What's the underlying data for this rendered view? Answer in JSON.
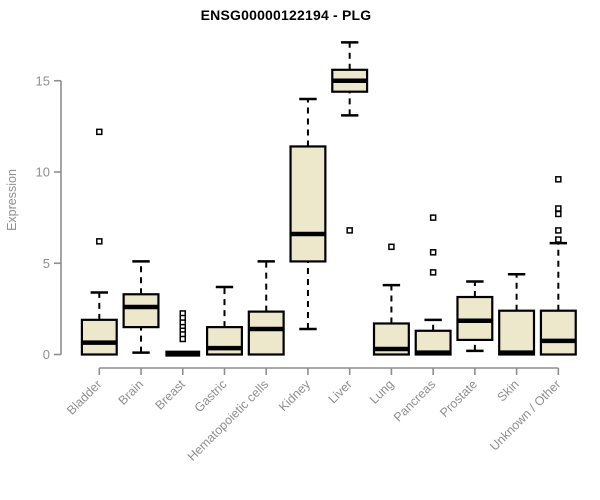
{
  "title": "ENSG00000122194 - PLG",
  "colors": {
    "background": "#ffffff",
    "box_fill": "#EDE8CC",
    "box_stroke": "#000000",
    "median": "#000000",
    "axis": "#8e8e8e",
    "tick_label": "#8f8f8f",
    "title": "#000000",
    "outlier_fill": "#ffffff"
  },
  "chart_data": {
    "type": "boxplot",
    "title": "ENSG00000122194 - PLG",
    "xlabel": "",
    "ylabel": "Expression",
    "yticks": [
      0,
      5,
      10,
      15
    ],
    "ylim": [
      0,
      17.5
    ],
    "grid": "off",
    "legend": "none",
    "categories": [
      "Bladder",
      "Brain",
      "Breast",
      "Gastric",
      "Hematopoietic cells",
      "Kidney",
      "Liver",
      "Lung",
      "Pancreas",
      "Prostate",
      "Skin",
      "Unknown / Other"
    ],
    "series": [
      {
        "name": "Bladder",
        "whisker_low": 0,
        "q1": 0,
        "median": 0.65,
        "q3": 1.9,
        "whisker_high": 3.4,
        "outliers": [
          12.2,
          6.2
        ]
      },
      {
        "name": "Brain",
        "whisker_low": 0.1,
        "q1": 1.5,
        "median": 2.6,
        "q3": 3.3,
        "whisker_high": 5.1,
        "outliers": []
      },
      {
        "name": "Breast",
        "whisker_low": 0,
        "q1": 0,
        "median": 0.05,
        "q3": 0.05,
        "whisker_high": 0.05,
        "outliers": [
          2.25,
          2.0,
          1.75,
          1.5,
          1.3,
          1.1,
          0.85
        ]
      },
      {
        "name": "Gastric",
        "whisker_low": 0,
        "q1": 0,
        "median": 0.35,
        "q3": 1.5,
        "whisker_high": 3.7,
        "outliers": []
      },
      {
        "name": "Hematopoietic cells",
        "whisker_low": 0,
        "q1": 0,
        "median": 1.4,
        "q3": 2.35,
        "whisker_high": 5.1,
        "outliers": []
      },
      {
        "name": "Kidney",
        "whisker_low": 1.4,
        "q1": 5.1,
        "median": 6.6,
        "q3": 11.4,
        "whisker_high": 14.0,
        "outliers": []
      },
      {
        "name": "Liver",
        "whisker_low": 13.1,
        "q1": 14.4,
        "median": 15.0,
        "q3": 15.6,
        "whisker_high": 17.1,
        "outliers": [
          6.8
        ]
      },
      {
        "name": "Lung",
        "whisker_low": 0,
        "q1": 0,
        "median": 0.3,
        "q3": 1.7,
        "whisker_high": 3.8,
        "outliers": [
          5.9
        ]
      },
      {
        "name": "Pancreas",
        "whisker_low": 0,
        "q1": 0,
        "median": 0.1,
        "q3": 1.3,
        "whisker_high": 1.9,
        "outliers": [
          7.5,
          5.6,
          4.5
        ]
      },
      {
        "name": "Prostate",
        "whisker_low": 0.2,
        "q1": 0.8,
        "median": 1.85,
        "q3": 3.15,
        "whisker_high": 4.0,
        "outliers": []
      },
      {
        "name": "Skin",
        "whisker_low": 0,
        "q1": 0,
        "median": 0.1,
        "q3": 2.4,
        "whisker_high": 4.4,
        "outliers": []
      },
      {
        "name": "Unknown / Other",
        "whisker_low": 0,
        "q1": 0,
        "median": 0.75,
        "q3": 2.4,
        "whisker_high": 6.1,
        "outliers": [
          9.6,
          8.0,
          7.7,
          6.8,
          6.3
        ]
      }
    ]
  }
}
